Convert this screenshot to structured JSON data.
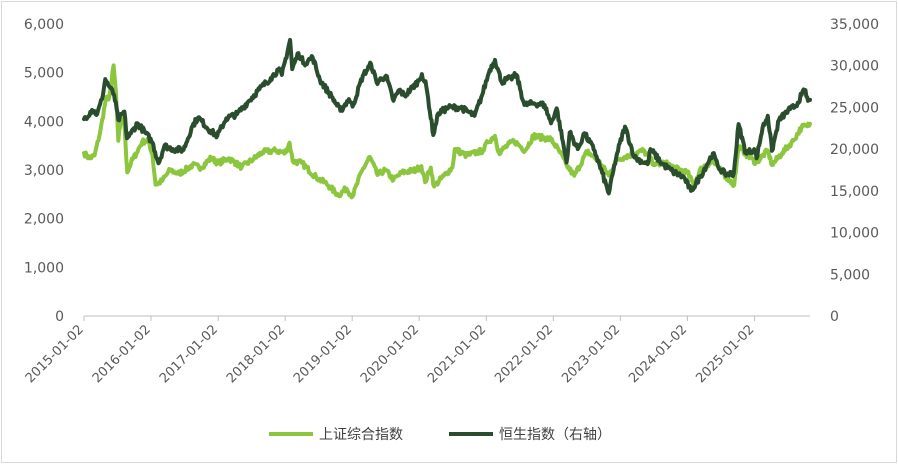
{
  "chart_data": {
    "type": "line",
    "title": "",
    "x_tick_labels": [
      "2015-01-02",
      "2016-01-02",
      "2017-01-02",
      "2018-01-02",
      "2019-01-02",
      "2020-01-02",
      "2021-01-02",
      "2022-01-02",
      "2023-01-02",
      "2024-01-02",
      "2025-01-02"
    ],
    "x_range": [
      "2015-01-02",
      "2025-10-31"
    ],
    "y_left": {
      "ticks": [
        "0",
        "1,000",
        "2,000",
        "3,000",
        "4,000",
        "5,000",
        "6,000"
      ],
      "range": [
        0,
        6000
      ]
    },
    "y_right": {
      "ticks": [
        "0",
        "5,000",
        "10,000",
        "15,000",
        "20,000",
        "25,000",
        "30,000",
        "35,000"
      ],
      "range": [
        0,
        35000
      ]
    },
    "grid": false,
    "legend_position": "bottom",
    "series": [
      {
        "name": "上证综合指数",
        "axis": "left",
        "color": "#8cc63f",
        "points": [
          [
            "2015-01-02",
            3350
          ],
          [
            "2015-02-01",
            3240
          ],
          [
            "2015-03-01",
            3300
          ],
          [
            "2015-04-01",
            3800
          ],
          [
            "2015-05-01",
            4450
          ],
          [
            "2015-05-20",
            4500
          ],
          [
            "2015-06-01",
            4800
          ],
          [
            "2015-06-12",
            5150
          ],
          [
            "2015-06-25",
            4600
          ],
          [
            "2015-07-08",
            3600
          ],
          [
            "2015-07-24",
            4100
          ],
          [
            "2015-08-10",
            3950
          ],
          [
            "2015-08-26",
            2950
          ],
          [
            "2015-09-15",
            3150
          ],
          [
            "2015-10-15",
            3350
          ],
          [
            "2015-11-15",
            3580
          ],
          [
            "2015-12-20",
            3600
          ],
          [
            "2016-01-10",
            3300
          ],
          [
            "2016-01-27",
            2700
          ],
          [
            "2016-03-01",
            2770
          ],
          [
            "2016-04-15",
            3000
          ],
          [
            "2016-06-01",
            2920
          ],
          [
            "2016-08-15",
            3100
          ],
          [
            "2016-10-01",
            3050
          ],
          [
            "2016-11-25",
            3250
          ],
          [
            "2017-01-02",
            3140
          ],
          [
            "2017-03-01",
            3240
          ],
          [
            "2017-05-10",
            3060
          ],
          [
            "2017-07-15",
            3230
          ],
          [
            "2017-09-01",
            3370
          ],
          [
            "2017-11-15",
            3400
          ],
          [
            "2018-01-02",
            3350
          ],
          [
            "2018-01-26",
            3560
          ],
          [
            "2018-02-12",
            3180
          ],
          [
            "2018-04-01",
            3150
          ],
          [
            "2018-06-20",
            2850
          ],
          [
            "2018-08-15",
            2720
          ],
          [
            "2018-10-19",
            2480
          ],
          [
            "2018-12-01",
            2620
          ],
          [
            "2019-01-04",
            2460
          ],
          [
            "2019-02-25",
            2990
          ],
          [
            "2019-04-08",
            3270
          ],
          [
            "2019-05-20",
            2900
          ],
          [
            "2019-07-01",
            3000
          ],
          [
            "2019-08-15",
            2800
          ],
          [
            "2019-10-01",
            2950
          ],
          [
            "2019-12-15",
            3000
          ],
          [
            "2020-01-14",
            3080
          ],
          [
            "2020-02-03",
            2750
          ],
          [
            "2020-03-05",
            3050
          ],
          [
            "2020-03-23",
            2660
          ],
          [
            "2020-05-15",
            2880
          ],
          [
            "2020-07-01",
            3050
          ],
          [
            "2020-07-14",
            3430
          ],
          [
            "2020-09-15",
            3300
          ],
          [
            "2020-12-15",
            3400
          ],
          [
            "2021-01-10",
            3580
          ],
          [
            "2021-02-18",
            3700
          ],
          [
            "2021-03-10",
            3360
          ],
          [
            "2021-06-01",
            3600
          ],
          [
            "2021-08-01",
            3400
          ],
          [
            "2021-09-15",
            3700
          ],
          [
            "2021-12-20",
            3630
          ],
          [
            "2022-02-01",
            3400
          ],
          [
            "2022-03-15",
            3100
          ],
          [
            "2022-04-26",
            2880
          ],
          [
            "2022-07-05",
            3380
          ],
          [
            "2022-09-01",
            3200
          ],
          [
            "2022-10-31",
            2890
          ],
          [
            "2022-12-10",
            3200
          ],
          [
            "2023-02-01",
            3280
          ],
          [
            "2023-05-08",
            3400
          ],
          [
            "2023-07-10",
            3100
          ],
          [
            "2023-09-01",
            3150
          ],
          [
            "2023-11-01",
            3030
          ],
          [
            "2024-01-02",
            2950
          ],
          [
            "2024-02-05",
            2700
          ],
          [
            "2024-03-20",
            3050
          ],
          [
            "2024-05-20",
            3170
          ],
          [
            "2024-07-10",
            2950
          ],
          [
            "2024-09-13",
            2690
          ],
          [
            "2024-10-08",
            3490
          ],
          [
            "2024-11-15",
            3330
          ],
          [
            "2025-01-10",
            3150
          ],
          [
            "2025-03-15",
            3400
          ],
          [
            "2025-04-07",
            3100
          ],
          [
            "2025-06-01",
            3350
          ],
          [
            "2025-08-01",
            3600
          ],
          [
            "2025-09-15",
            3880
          ],
          [
            "2025-10-15",
            3900
          ],
          [
            "2025-10-31",
            3950
          ]
        ]
      },
      {
        "name": "恒生指数（右轴）",
        "axis": "right",
        "color": "#2a4d2e",
        "points": [
          [
            "2015-01-02",
            23600
          ],
          [
            "2015-02-15",
            24700
          ],
          [
            "2015-03-15",
            24200
          ],
          [
            "2015-04-10",
            26000
          ],
          [
            "2015-04-28",
            28400
          ],
          [
            "2015-05-20",
            27500
          ],
          [
            "2015-06-15",
            26500
          ],
          [
            "2015-07-08",
            23500
          ],
          [
            "2015-08-10",
            24500
          ],
          [
            "2015-08-24",
            21300
          ],
          [
            "2015-09-15",
            21900
          ],
          [
            "2015-10-20",
            23100
          ],
          [
            "2015-12-01",
            22000
          ],
          [
            "2016-01-10",
            20800
          ],
          [
            "2016-02-12",
            18300
          ],
          [
            "2016-03-15",
            20400
          ],
          [
            "2016-05-01",
            20000
          ],
          [
            "2016-06-27",
            19900
          ],
          [
            "2016-08-15",
            22800
          ],
          [
            "2016-09-15",
            23800
          ],
          [
            "2016-11-20",
            22200
          ],
          [
            "2016-12-28",
            21600
          ],
          [
            "2017-02-15",
            23700
          ],
          [
            "2017-04-15",
            24200
          ],
          [
            "2017-06-15",
            25700
          ],
          [
            "2017-08-15",
            27200
          ],
          [
            "2017-10-15",
            28500
          ],
          [
            "2017-11-25",
            29500
          ],
          [
            "2017-12-15",
            28900
          ],
          [
            "2018-01-29",
            33100
          ],
          [
            "2018-02-09",
            29600
          ],
          [
            "2018-03-15",
            31500
          ],
          [
            "2018-04-15",
            30300
          ],
          [
            "2018-06-01",
            31000
          ],
          [
            "2018-07-10",
            28300
          ],
          [
            "2018-09-12",
            26300
          ],
          [
            "2018-10-30",
            24600
          ],
          [
            "2018-12-15",
            26000
          ],
          [
            "2019-01-04",
            25100
          ],
          [
            "2019-03-01",
            28800
          ],
          [
            "2019-04-15",
            30200
          ],
          [
            "2019-05-15",
            28000
          ],
          [
            "2019-07-05",
            28800
          ],
          [
            "2019-08-15",
            25800
          ],
          [
            "2019-09-15",
            27100
          ],
          [
            "2019-10-15",
            26400
          ],
          [
            "2019-12-31",
            28200
          ],
          [
            "2020-01-17",
            29000
          ],
          [
            "2020-02-10",
            27500
          ],
          [
            "2020-03-19",
            21700
          ],
          [
            "2020-04-15",
            24300
          ],
          [
            "2020-06-10",
            25000
          ],
          [
            "2020-08-15",
            25000
          ],
          [
            "2020-10-30",
            24000
          ],
          [
            "2020-12-10",
            26500
          ],
          [
            "2021-01-20",
            29500
          ],
          [
            "2021-02-18",
            30700
          ],
          [
            "2021-03-25",
            28100
          ],
          [
            "2021-05-15",
            28500
          ],
          [
            "2021-06-15",
            28900
          ],
          [
            "2021-07-28",
            25300
          ],
          [
            "2021-09-15",
            25500
          ],
          [
            "2021-11-15",
            25300
          ],
          [
            "2021-12-20",
            23100
          ],
          [
            "2022-01-20",
            24900
          ],
          [
            "2022-03-15",
            18400
          ],
          [
            "2022-04-01",
            22000
          ],
          [
            "2022-05-15",
            20000
          ],
          [
            "2022-06-20",
            21900
          ],
          [
            "2022-08-15",
            19800
          ],
          [
            "2022-10-31",
            14700
          ],
          [
            "2022-12-15",
            19500
          ],
          [
            "2023-01-27",
            22700
          ],
          [
            "2023-03-20",
            19000
          ],
          [
            "2023-05-31",
            18200
          ],
          [
            "2023-06-15",
            20000
          ],
          [
            "2023-08-15",
            18300
          ],
          [
            "2023-10-15",
            17300
          ],
          [
            "2023-12-15",
            16600
          ],
          [
            "2024-01-22",
            15000
          ],
          [
            "2024-03-15",
            16800
          ],
          [
            "2024-05-20",
            19500
          ],
          [
            "2024-06-15",
            18000
          ],
          [
            "2024-07-25",
            17000
          ],
          [
            "2024-09-11",
            17100
          ],
          [
            "2024-10-07",
            23000
          ],
          [
            "2024-11-15",
            19500
          ],
          [
            "2024-12-31",
            20000
          ],
          [
            "2025-01-13",
            18900
          ],
          [
            "2025-02-15",
            22600
          ],
          [
            "2025-03-15",
            24000
          ],
          [
            "2025-04-07",
            19800
          ],
          [
            "2025-05-15",
            23500
          ],
          [
            "2025-07-15",
            24800
          ],
          [
            "2025-08-15",
            25200
          ],
          [
            "2025-09-15",
            26500
          ],
          [
            "2025-10-02",
            27100
          ],
          [
            "2025-10-20",
            25800
          ],
          [
            "2025-10-31",
            25900
          ]
        ]
      }
    ]
  }
}
